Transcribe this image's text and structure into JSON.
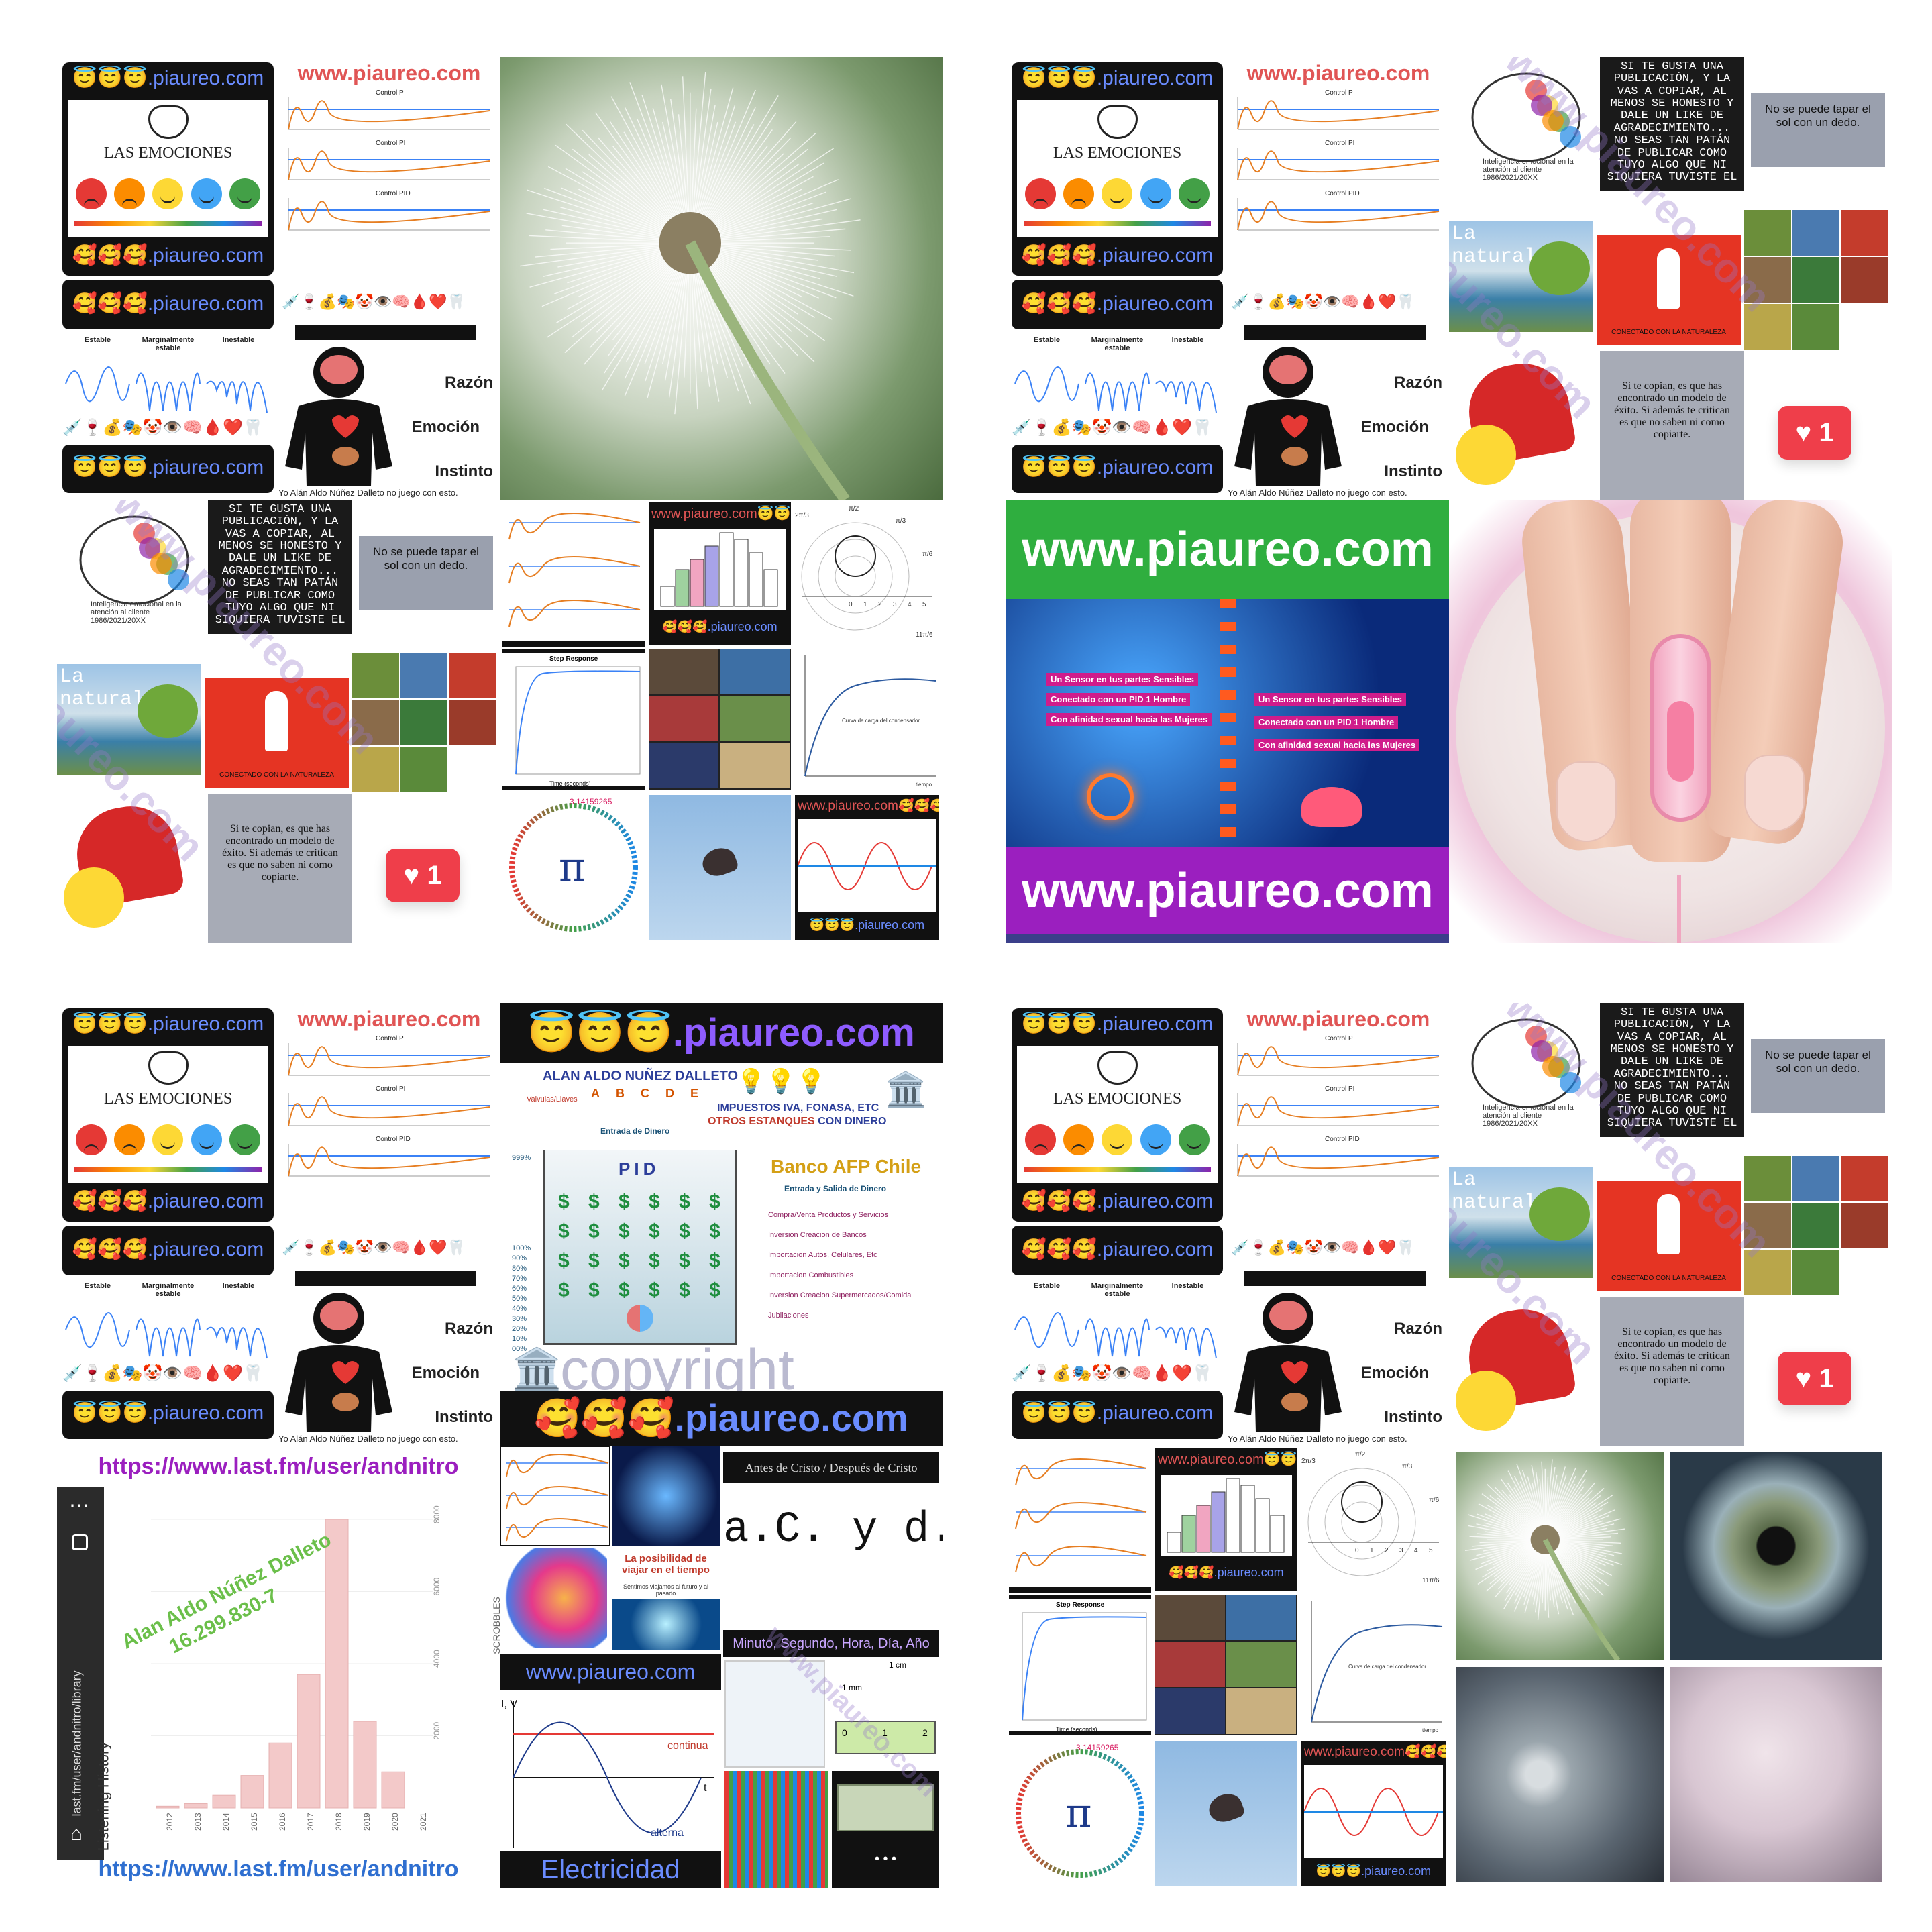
{
  "site": {
    "brand": ".piaureo.com",
    "www": "www.piaureo.com",
    "banner_www": "www.piaureo.com",
    "brand_angel": "😇😇😇",
    "brand_love": "🥰🥰🥰",
    "brand_tile_love": "🥰🥰🥰.piaureo.com",
    "brand_tile_angel": "😇😇😇.piaureo.com"
  },
  "emociones": {
    "title": "LAS EMOCIONES",
    "razon": "Razón",
    "emocion": "Emoción",
    "instinto": "Instinto",
    "footer": "Yo Alán Aldo Núñez Dalleto no juego con esto.",
    "stability": [
      "Estable",
      "Marginalmente estable",
      "Inestable"
    ],
    "control": [
      "Control P",
      "Control PI",
      "Control PID"
    ],
    "icons_row": "💉🍷💰🎭🤡👁️🧠🩸❤️🦷"
  },
  "quotes": {
    "copy": "SI TE GUSTA UNA PUBLICACIÓN, Y LA VAS A COPIAR, AL MENOS SE HONESTO Y DALE UN LIKE DE AGRADECIMIENTO... NO SEAS TAN PATÁN DE PUBLICAR COMO TUYO ALGO QUE NI SIQUIERA TUVISTE EL",
    "sol": "No se puede tapar el sol con un dedo.",
    "naturaleza": "La naturaleza",
    "conectado": "CONECTADO CON LA NATURALEZA",
    "exito": "Si te copian, es que has encontrado un modelo de éxito. Si además te critican es que no saben ni como copiarte.",
    "likes": "1",
    "brain_caption": "Inteligencia emocional en la atención al cliente 1986/2021/20XX"
  },
  "charts_tile": {
    "step": "Step Response",
    "pi": "3.14159265358979323846264338327950288419716939937510",
    "pi_symbol": "π",
    "carga": "Curva de carga del condensador",
    "time": "Time (seconds)",
    "amplitude": "Amplitude",
    "tiempo": "tiempo",
    "polar_top": "π/2",
    "polar_left": "2π/3",
    "polar_right": "π/3",
    "polar_r": "π/6",
    "polar_b": "11π/6",
    "axis_nums": [
      "0",
      "1",
      "2",
      "3",
      "4",
      "5"
    ]
  },
  "sensor": {
    "lines": [
      "Un Sensor en tus partes Sensibles",
      "Conectado con un PID 1 Hombre",
      "Con afinidad sexual hacia las Mujeres"
    ],
    "lines_right": [
      "Un Sensor en tus partes Sensibles",
      "Conectado con un PID 1 Hombre",
      "Con afinidad sexual hacia las Mujeres"
    ]
  },
  "pid_tile": {
    "author": "ALAN ALDO NUÑEZ DALLETO",
    "valvulas": "Valvulas/Llaves",
    "abcde": [
      "A",
      "B",
      "C",
      "D",
      "E"
    ],
    "entrada": "Entrada de Dinero",
    "impuestos": "IMPUESTOS IVA, FONASA, ETC",
    "estanques": "OTROS ESTANQUES",
    "con_dinero": "CON DINERO",
    "pid": "PID",
    "banco": "Banco AFP Chile",
    "entrada_salida": "Entrada y Salida de Dinero",
    "percentages": [
      "999%",
      "100%",
      "90%",
      "80%",
      "70%",
      "60%",
      "50%",
      "40%",
      "30%",
      "20%",
      "10%",
      "00%"
    ],
    "list": [
      "Compra/Venta Productos y Servicios",
      "Inversion Creacion de Bancos",
      "Importacion Autos, Celulares, Etc",
      "Importacion Combustibles",
      "Inversion Creacion Supermercados/Comida",
      "Jubilaciones"
    ],
    "copyright": "copyright",
    "dollars": [
      "$ $   $ $ $ $ $",
      "$ $ $ $ $ $ $ $",
      "$ $ $ $ $ $ $ $",
      "$ $ $ $ $ $ $ $"
    ]
  },
  "lastfm": {
    "url": "https://www.last.fm/user/andnitro",
    "name": "Alan Aldo Núñez Dalleto",
    "rut": "16.299.830-7",
    "side_url": "last.fm/user/andnitro/library",
    "listening": "Listening History",
    "scrobbles": "SCROBBLES",
    "years": [
      "2012",
      "2013",
      "2014",
      "2015",
      "2016",
      "2017",
      "2018",
      "2019",
      "2020",
      "2021"
    ],
    "values": [
      50,
      120,
      350,
      900,
      1800,
      3700,
      8000,
      2400,
      1000,
      0
    ],
    "yticks": [
      "8000",
      "6000",
      "4000",
      "2000"
    ],
    "menu": "⋯"
  },
  "collage": {
    "acdc": "Antes de Cristo / Después de Cristo",
    "acdc_big": "a.C. y d.C.",
    "viajar": "La posibilidad de viajar en el tiempo",
    "viajar_sub": "Sentimos viajamos al futuro y al pasado",
    "minuto": "Minuto, Segundo, Hora, Día, Año",
    "www": "www.piaureo.com",
    "iv": "I, V",
    "continua": "continua",
    "alterna": "alterna",
    "t": "t",
    "electricidad": "Electricidad",
    "cm": "1 cm",
    "mm": "1 mm",
    "ruler": [
      "0",
      "1",
      "2"
    ],
    "dots": "• • •"
  }
}
